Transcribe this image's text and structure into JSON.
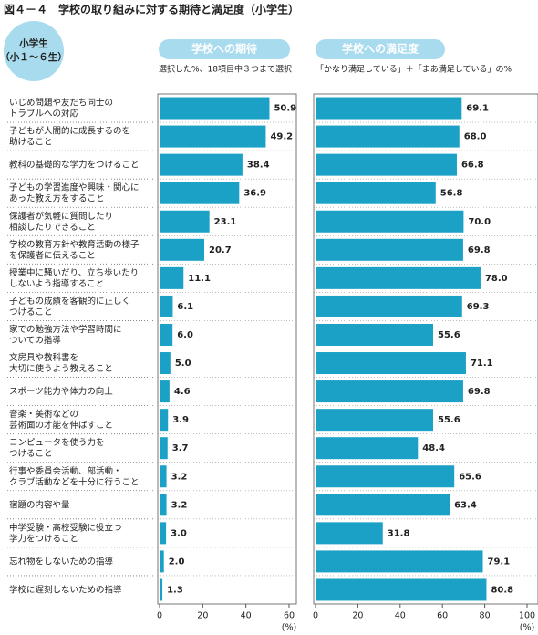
{
  "title": "図４－４　学校の取り組みに対する期待と満足度（小学生）",
  "badge": [
    "小学生",
    "（小１～６生）"
  ],
  "categories": [
    "いじめ問題や友だち同士の\nトラブルへの対応",
    "子どもが人間的に成長するのを\n助けること",
    "教科の基礎的な学力をつけること",
    "子どもの学習進度や興味・関心に\nあった教え方をすること",
    "保護者が気軽に質問したり\n相談したりできること",
    "学校の教育方針や教育活動の様子\nを保護者に伝えること",
    "授業中に騒いだり、立ち歩いたり\nしないよう指導すること",
    "子どもの成績を客観的に正しく\nつけること",
    "家での勉強方法や学習時間に\nついての指導",
    "文房具や教科書を\n大切に使うよう教えること",
    "スポーツ能力や体力の向上",
    "音楽・美術などの\n芸術面の才能を伸ばすこと",
    "コンピュータを使う力を\nつけること",
    "行事や委員会活動、部活動・\nクラブ活動などを十分に行うこと",
    "宿題の内容や量",
    "中学受験・高校受験に役立つ\n学力をつけること",
    "忘れ物をしないための指導",
    "学校に遅刻しないための指導"
  ],
  "chart_data": [
    {
      "type": "bar",
      "title": "学校への期待",
      "subtitle": "選択した%、18項目中３つまで選択",
      "values": [
        50.9,
        49.2,
        38.4,
        36.9,
        23.1,
        20.7,
        11.1,
        6.1,
        6.0,
        5.0,
        4.6,
        3.9,
        3.7,
        3.2,
        3.2,
        3.0,
        2.0,
        1.3
      ],
      "value_labels": [
        "50.9",
        "49.2",
        "38.4",
        "36.9",
        "23.1",
        "20.7",
        "11.1",
        "6.1",
        "6.0",
        "5.0",
        "4.6",
        "3.9",
        "3.7",
        "3.2",
        "3.2",
        "3.0",
        "2.0",
        "1.3"
      ],
      "color": "#1ba1c5",
      "xlim": [
        0,
        60
      ],
      "xticks": [
        0,
        20,
        40,
        60
      ],
      "axis_label": "(%)"
    },
    {
      "type": "bar",
      "title": "学校への満足度",
      "subtitle": "「かなり満足している」＋「まあ満足している」の%",
      "values": [
        69.1,
        68.0,
        66.8,
        56.8,
        70.0,
        69.8,
        78.0,
        69.3,
        55.6,
        71.1,
        69.8,
        55.6,
        48.4,
        65.6,
        63.4,
        31.8,
        79.1,
        80.8
      ],
      "value_labels": [
        "69.1",
        "68.0",
        "66.8",
        "56.8",
        "70.0",
        "69.8",
        "78.0",
        "69.3",
        "55.6",
        "71.1",
        "69.8",
        "55.6",
        "48.4",
        "65.6",
        "63.4",
        "31.8",
        "79.1",
        "80.8"
      ],
      "color": "#1ba1c5",
      "xlim": [
        0,
        100
      ],
      "xticks": [
        0,
        20,
        40,
        60,
        80,
        100
      ],
      "axis_label": "(%)"
    }
  ]
}
